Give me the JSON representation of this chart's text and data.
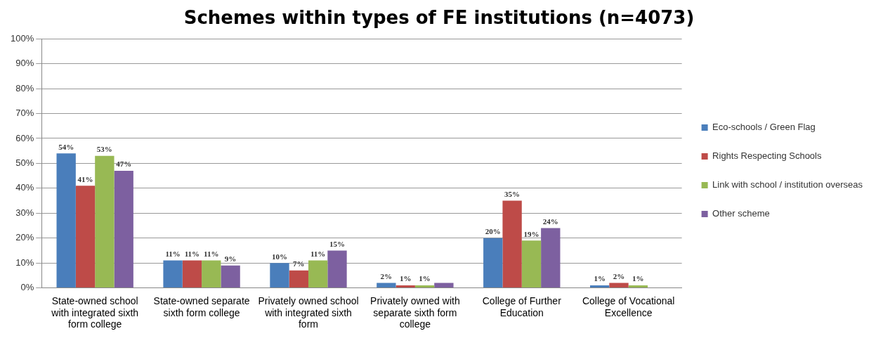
{
  "chart_data": {
    "type": "bar",
    "title": "Schemes within types of FE institutions (n=4073)",
    "categories": [
      "State-owned school with integrated sixth form college",
      "State-owned separate sixth form college",
      "Privately owned school with integrated sixth form",
      "Privately owned with separate sixth form college",
      "College of Further Education",
      "College of Vocational Excellence"
    ],
    "series": [
      {
        "name": "Eco-schools / Green Flag",
        "color": "#4a7ebb",
        "values": [
          54,
          11,
          10,
          2,
          20,
          1
        ],
        "value_labels": [
          "54%",
          "11%",
          "10%",
          "2%",
          "20%",
          "1%"
        ]
      },
      {
        "name": "Rights Respecting Schools",
        "color": "#be4b48",
        "values": [
          41,
          11,
          7,
          1,
          35,
          2
        ],
        "value_labels": [
          "41%",
          "11%",
          "7%",
          "1%",
          "35%",
          "2%"
        ]
      },
      {
        "name": "Link with school / institution overseas",
        "color": "#98b954",
        "values": [
          53,
          11,
          11,
          1,
          19,
          1
        ],
        "value_labels": [
          "53%",
          "11%",
          "11%",
          "1%",
          "19%",
          "1%"
        ]
      },
      {
        "name": "Other scheme",
        "color": "#7d60a0",
        "values": [
          47,
          9,
          15,
          2,
          24,
          null
        ],
        "value_labels": [
          "47%",
          "9%",
          "15%",
          null,
          "24%",
          null
        ]
      }
    ],
    "ylim": [
      0,
      100
    ],
    "yticks": [
      {
        "value": 0,
        "label": "0%"
      },
      {
        "value": 10,
        "label": "10%"
      },
      {
        "value": 20,
        "label": "20%"
      },
      {
        "value": 30,
        "label": "30%"
      },
      {
        "value": 40,
        "label": "40%"
      },
      {
        "value": 50,
        "label": "50%"
      },
      {
        "value": 60,
        "label": "60%"
      },
      {
        "value": 70,
        "label": "70%"
      },
      {
        "value": 80,
        "label": "80%"
      },
      {
        "value": 90,
        "label": "90%"
      },
      {
        "value": 100,
        "label": "100%"
      }
    ],
    "grid": "y",
    "legend": "right"
  }
}
